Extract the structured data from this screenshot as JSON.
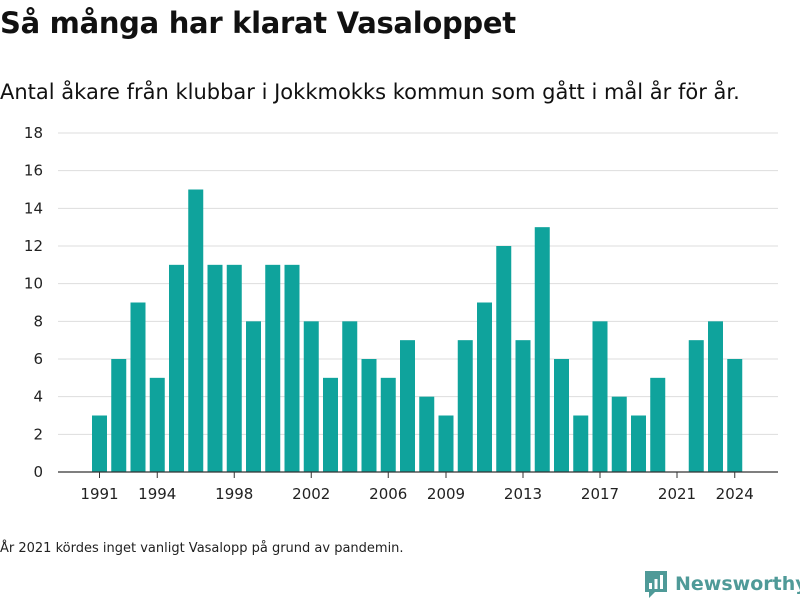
{
  "header": {
    "title": "Så många har klarat Vasaloppet",
    "subtitle": "Antal åkare från klubbar i Jokkmokks kommun som gått i mål år för år."
  },
  "footer": {
    "note": "År 2021 kördes inget vanligt Vasalopp på grund av pandemin.",
    "brand": "Newsworthy",
    "brand_icon": "newsworthy-logo-icon"
  },
  "colors": {
    "bar": "#0fa39c",
    "grid": "#dddddd",
    "axis": "#333333",
    "brand": "#4f9a98"
  },
  "chart_data": {
    "type": "bar",
    "categories": [
      "1991",
      "1992",
      "1993",
      "1994",
      "1995",
      "1996",
      "1997",
      "1998",
      "1999",
      "2000",
      "2001",
      "2002",
      "2003",
      "2004",
      "2005",
      "2006",
      "2007",
      "2008",
      "2009",
      "2010",
      "2011",
      "2012",
      "2013",
      "2014",
      "2015",
      "2016",
      "2017",
      "2018",
      "2019",
      "2020",
      "2021",
      "2022",
      "2023",
      "2024"
    ],
    "values": [
      3,
      6,
      9,
      5,
      11,
      15,
      11,
      11,
      8,
      11,
      11,
      8,
      5,
      8,
      6,
      5,
      7,
      4,
      3,
      7,
      9,
      12,
      7,
      13,
      6,
      3,
      8,
      4,
      3,
      5,
      0,
      7,
      8,
      6
    ],
    "x_tick_labels": [
      "1991",
      "1994",
      "1998",
      "2002",
      "2006",
      "2009",
      "2013",
      "2017",
      "2021",
      "2024"
    ],
    "y_ticks": [
      0,
      2,
      4,
      6,
      8,
      10,
      12,
      14,
      16,
      18
    ],
    "ylim": [
      0,
      18
    ],
    "xlabel": "",
    "ylabel": "",
    "grid": true,
    "legend": false
  }
}
